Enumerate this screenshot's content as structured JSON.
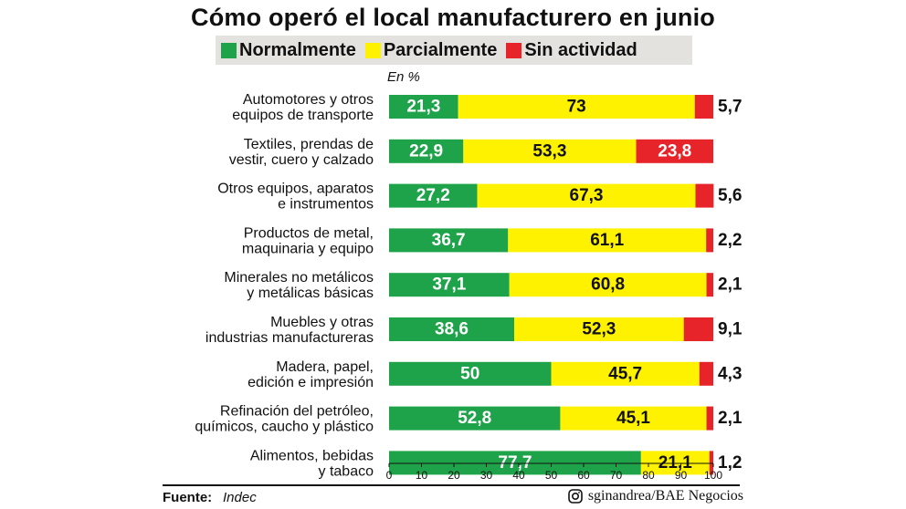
{
  "header": {
    "title": "Cómo operó el local manufacturero en junio"
  },
  "legend": [
    {
      "label": "Normalmente",
      "color": "#1fa34a"
    },
    {
      "label": "Parcialmente",
      "color": "#fff200"
    },
    {
      "label": "Sin actividad",
      "color": "#e8242b"
    }
  ],
  "unit_label": "En %",
  "footer": {
    "source_prefix": "Fuente:",
    "source": "Indec",
    "credit": "sginandrea/BAE Negocios",
    "credit_icon": "instagram-icon"
  },
  "chart_data": {
    "type": "bar",
    "orientation": "horizontal",
    "stacked": true,
    "title": "Cómo operó el local manufacturero en junio",
    "unit": "En %",
    "xlim": [
      0,
      100
    ],
    "xticks": [
      0,
      10,
      20,
      30,
      40,
      50,
      60,
      70,
      80,
      90,
      100
    ],
    "grid": false,
    "legend_position": "top",
    "categories": [
      [
        "Automotores y otros",
        "equipos de transporte"
      ],
      [
        "Textiles, prendas de",
        "vestir, cuero y calzado"
      ],
      [
        "Otros equipos, aparatos",
        "e instrumentos"
      ],
      [
        "Productos de metal,",
        "maquinaria y equipo"
      ],
      [
        "Minerales no metálicos",
        "y metálicas básicas"
      ],
      [
        "Muebles y otras",
        "industrias manufactureras"
      ],
      [
        "Madera, papel,",
        "edición e impresión"
      ],
      [
        "Refinación del petróleo,",
        "químicos, caucho y plástico"
      ],
      [
        "Alimentos, bebidas",
        "y tabaco"
      ]
    ],
    "series": [
      {
        "name": "Normalmente",
        "color": "#1fa34a",
        "values": [
          21.3,
          22.9,
          27.2,
          36.7,
          37.1,
          38.6,
          50,
          52.8,
          77.7
        ],
        "labels": [
          "21,3",
          "22,9",
          "27,2",
          "36,7",
          "37,1",
          "38,6",
          "50",
          "52,8",
          "77,7"
        ]
      },
      {
        "name": "Parcialmente",
        "color": "#fff200",
        "values": [
          73,
          53.3,
          67.3,
          61.1,
          60.8,
          52.3,
          45.7,
          45.1,
          21.1
        ],
        "labels": [
          "73",
          "53,3",
          "67,3",
          "61,1",
          "60,8",
          "52,3",
          "45,7",
          "45,1",
          "21,1"
        ]
      },
      {
        "name": "Sin actividad",
        "color": "#e8242b",
        "values": [
          5.7,
          23.8,
          5.6,
          2.2,
          2.1,
          9.1,
          4.3,
          2.1,
          1.2
        ],
        "labels": [
          "5,7",
          "23,8",
          "5,6",
          "2,2",
          "2,1",
          "9,1",
          "4,3",
          "2,1",
          "1,2"
        ]
      }
    ]
  }
}
